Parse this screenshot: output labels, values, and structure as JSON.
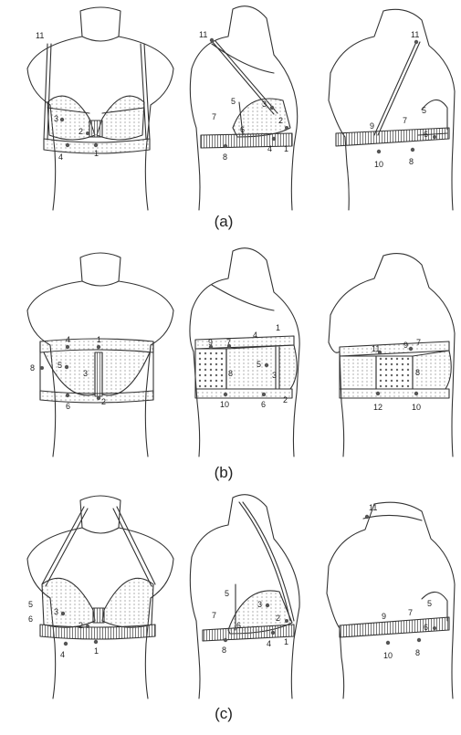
{
  "panels": [
    {
      "caption": "(a)",
      "views": [
        {
          "labels": [
            {
              "key": "front-11",
              "text": "11"
            },
            {
              "key": "front-3",
              "text": "3"
            },
            {
              "key": "front-2",
              "text": "2"
            },
            {
              "key": "front-4",
              "text": "4"
            },
            {
              "key": "front-1",
              "text": "1"
            }
          ]
        },
        {
          "labels": [
            {
              "key": "side-11",
              "text": "11"
            },
            {
              "key": "side-5",
              "text": "5"
            },
            {
              "key": "side-3",
              "text": "3"
            },
            {
              "key": "side-7",
              "text": "7"
            },
            {
              "key": "side-6",
              "text": "6"
            },
            {
              "key": "side-2",
              "text": "2"
            },
            {
              "key": "side-8",
              "text": "8"
            },
            {
              "key": "side-4",
              "text": "4"
            },
            {
              "key": "side-1",
              "text": "1"
            }
          ]
        },
        {
          "labels": [
            {
              "key": "back-11",
              "text": "11"
            },
            {
              "key": "back-5",
              "text": "5"
            },
            {
              "key": "back-9",
              "text": "9"
            },
            {
              "key": "back-7",
              "text": "7"
            },
            {
              "key": "back-6",
              "text": "6"
            },
            {
              "key": "back-10",
              "text": "10"
            },
            {
              "key": "back-8",
              "text": "8"
            }
          ]
        }
      ]
    },
    {
      "caption": "(b)",
      "views": [
        {
          "labels": [
            {
              "key": "front-4",
              "text": "4"
            },
            {
              "key": "front-1",
              "text": "1"
            },
            {
              "key": "front-8",
              "text": "8"
            },
            {
              "key": "front-5",
              "text": "5"
            },
            {
              "key": "front-3",
              "text": "3"
            },
            {
              "key": "front-6",
              "text": "6"
            },
            {
              "key": "front-2",
              "text": "2"
            }
          ]
        },
        {
          "labels": [
            {
              "key": "side-9",
              "text": "9"
            },
            {
              "key": "side-7",
              "text": "7"
            },
            {
              "key": "side-4",
              "text": "4"
            },
            {
              "key": "side-1",
              "text": "1"
            },
            {
              "key": "side-8",
              "text": "8"
            },
            {
              "key": "side-5",
              "text": "5"
            },
            {
              "key": "side-3",
              "text": "3"
            },
            {
              "key": "side-10",
              "text": "10"
            },
            {
              "key": "side-6",
              "text": "6"
            },
            {
              "key": "side-2",
              "text": "2"
            }
          ]
        },
        {
          "labels": [
            {
              "key": "back-11",
              "text": "11"
            },
            {
              "key": "back-9",
              "text": "9"
            },
            {
              "key": "back-7",
              "text": "7"
            },
            {
              "key": "back-8",
              "text": "8"
            },
            {
              "key": "back-12",
              "text": "12"
            },
            {
              "key": "back-10",
              "text": "10"
            }
          ]
        }
      ]
    },
    {
      "caption": "(c)",
      "views": [
        {
          "labels": [
            {
              "key": "front-5",
              "text": "5"
            },
            {
              "key": "front-3",
              "text": "3"
            },
            {
              "key": "front-6",
              "text": "6"
            },
            {
              "key": "front-2",
              "text": "2"
            },
            {
              "key": "front-4",
              "text": "4"
            },
            {
              "key": "front-1",
              "text": "1"
            }
          ]
        },
        {
          "labels": [
            {
              "key": "side-5",
              "text": "5"
            },
            {
              "key": "side-3",
              "text": "3"
            },
            {
              "key": "side-7",
              "text": "7"
            },
            {
              "key": "side-6",
              "text": "6"
            },
            {
              "key": "side-2",
              "text": "2"
            },
            {
              "key": "side-8",
              "text": "8"
            },
            {
              "key": "side-4",
              "text": "4"
            },
            {
              "key": "side-1",
              "text": "1"
            }
          ]
        },
        {
          "labels": [
            {
              "key": "back-11",
              "text": "11"
            },
            {
              "key": "back-5",
              "text": "5"
            },
            {
              "key": "back-9",
              "text": "9"
            },
            {
              "key": "back-7",
              "text": "7"
            },
            {
              "key": "back-6",
              "text": "6"
            },
            {
              "key": "back-10",
              "text": "10"
            },
            {
              "key": "back-8",
              "text": "8"
            }
          ]
        }
      ]
    }
  ]
}
